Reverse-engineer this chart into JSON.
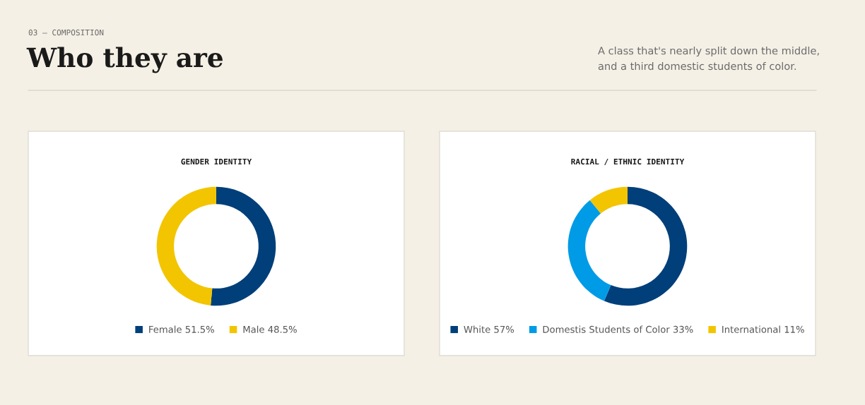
{
  "chart_data": [
    {
      "type": "donut",
      "title": "GENDER IDENTITY",
      "categories": [
        "Female",
        "Male"
      ],
      "values": [
        51.5,
        48.5
      ],
      "value_labels": [
        "51.5%",
        "48.5%"
      ],
      "colors": [
        "#003f7a",
        "#f2c500"
      ],
      "legend": "bottom",
      "annotations": [
        "03 — COMPOSITION",
        "Who they are",
        "A class that's nearly split down the middle,\nand a third domestic students of color."
      ]
    },
    {
      "type": "donut",
      "title": "RACIAL / ETHNIC IDENTITY",
      "categories": [
        "White",
        "Domestis Students of Color",
        "International"
      ],
      "values": [
        57,
        33,
        11
      ],
      "value_labels": [
        "57%",
        "33%",
        "11%"
      ],
      "colors": [
        "#003f7a",
        "#009be6",
        "#f2c500"
      ],
      "legend": "bottom"
    }
  ]
}
